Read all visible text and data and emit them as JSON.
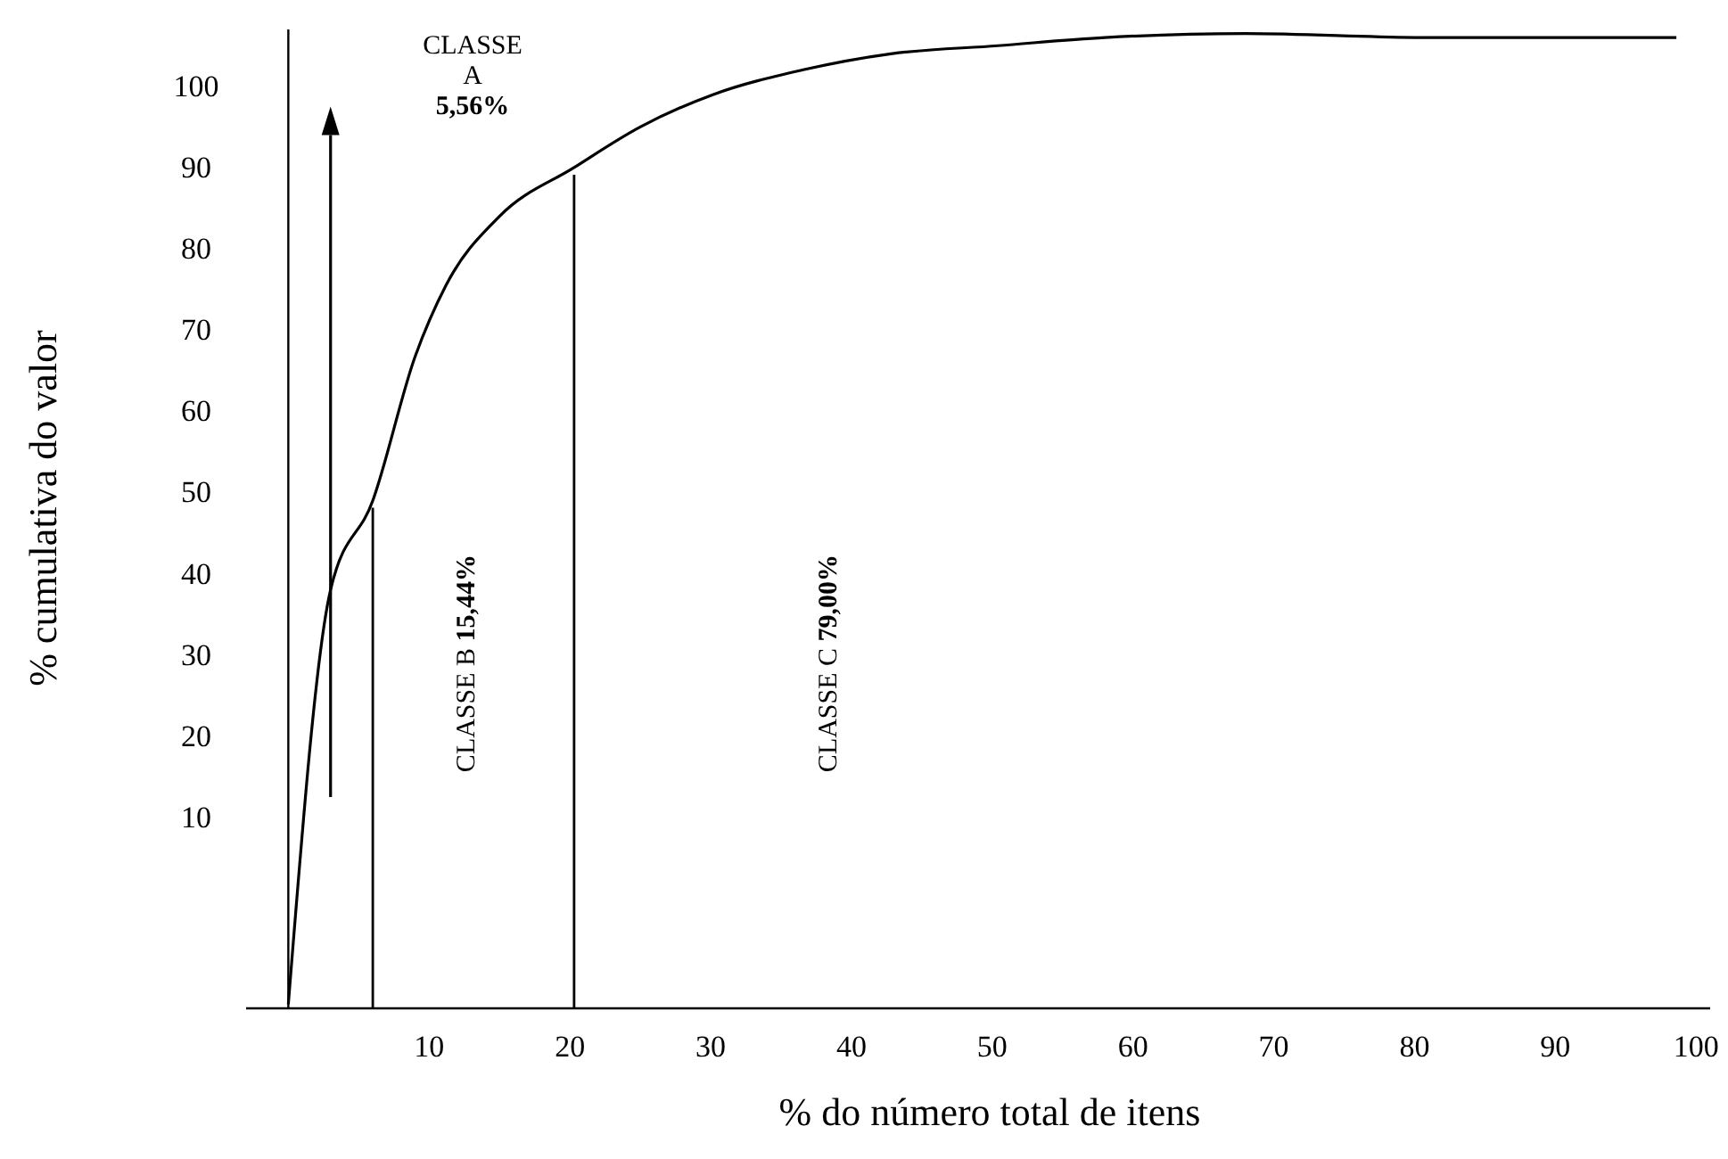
{
  "chart_data": {
    "type": "line",
    "xlabel": "% do número total de itens",
    "ylabel": "% cumulativa do valor",
    "xlim": [
      -3,
      101
    ],
    "ylim": [
      -13.5,
      107
    ],
    "xticks": [
      10,
      20,
      30,
      40,
      50,
      60,
      70,
      80,
      90,
      100
    ],
    "yticks": [
      10,
      20,
      30,
      40,
      50,
      60,
      70,
      80,
      90,
      100
    ],
    "marker": "none",
    "line_style": "solid",
    "series": [
      {
        "color": "#000000",
        "x": [
          0,
          3,
          6,
          9,
          11.2,
          15,
          20.3,
          25,
          30.2,
          36.5,
          42.8,
          50.4,
          58,
          68,
          81,
          98.6
        ],
        "values": [
          -13,
          38,
          49,
          66.7,
          75.5,
          84,
          90,
          95,
          99,
          102,
          104,
          105,
          106,
          106.5,
          106,
          106
        ]
      }
    ],
    "ref_lines": [
      {
        "axis": "x",
        "value": 6,
        "color": "#000000"
      },
      {
        "axis": "x",
        "value": 20.3,
        "color": "#000000"
      }
    ],
    "annotations": [
      "CLASSE\nA\n5,56%",
      "CLASSE B 15,44%",
      "CLASSE C 79,00%"
    ]
  }
}
